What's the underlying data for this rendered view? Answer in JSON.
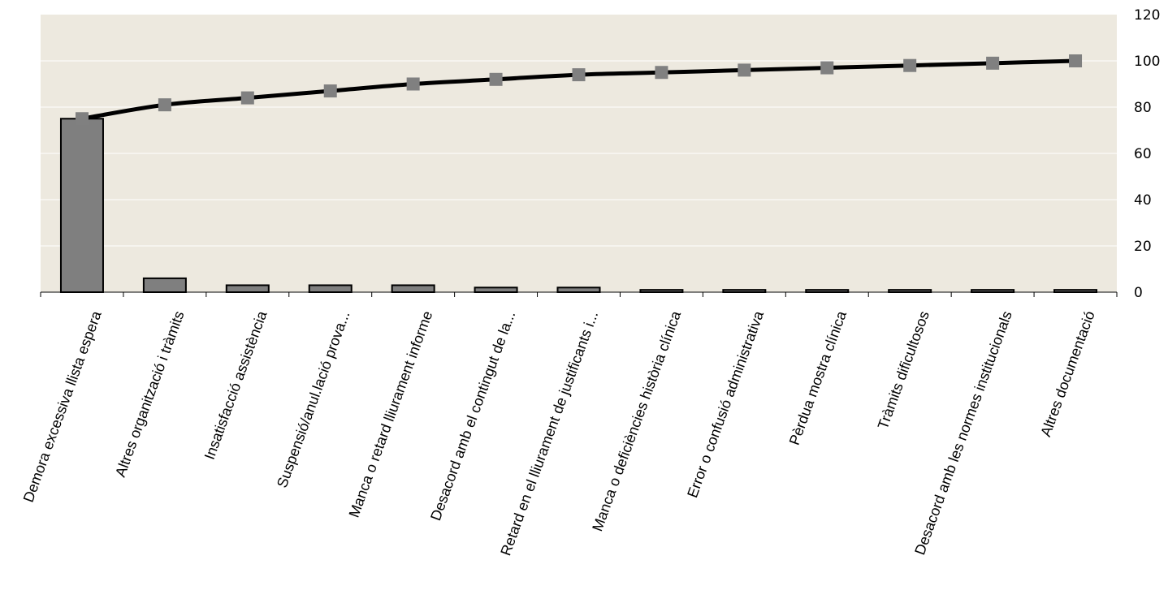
{
  "chart_data": {
    "type": "bar",
    "categories": [
      "Demora excessiva llista espera",
      "Altres organització i tràmits",
      "Insatisfacció assistència",
      "Suspensió/anul.lació prova...",
      "Manca o retard lliurament informe",
      "Desacord amb el contingut de la...",
      "Retard en el lliurament de justificants i...",
      "Manca o deficiències història clínica",
      "Error o confusió administrativa",
      "Pèrdua mostra clínica",
      "Tràmits dificultosos",
      "Desacord amb les normes institucionals",
      "Altres documentació"
    ],
    "series": [
      {
        "type": "bar",
        "values": [
          75,
          6,
          3,
          3,
          3,
          2,
          2,
          1,
          1,
          1,
          1,
          1,
          1
        ]
      },
      {
        "type": "line",
        "axis": "right",
        "values": [
          75,
          81,
          84,
          87,
          90,
          92,
          94,
          95,
          96,
          97,
          98,
          99,
          100
        ]
      }
    ],
    "title": "",
    "xlabel": "",
    "ylabel": "",
    "ylim": [
      0,
      120
    ],
    "yticks": [
      "0",
      "20",
      "40",
      "60",
      "80",
      "100",
      "120"
    ],
    "y_axis_side": "right",
    "grid": true,
    "colors": {
      "plot_background": "#ede9df",
      "bar_fill": "#7f7f7f",
      "bar_stroke": "#000000",
      "line": "#000000",
      "marker": "#808080",
      "grid": "#ffffff"
    }
  }
}
